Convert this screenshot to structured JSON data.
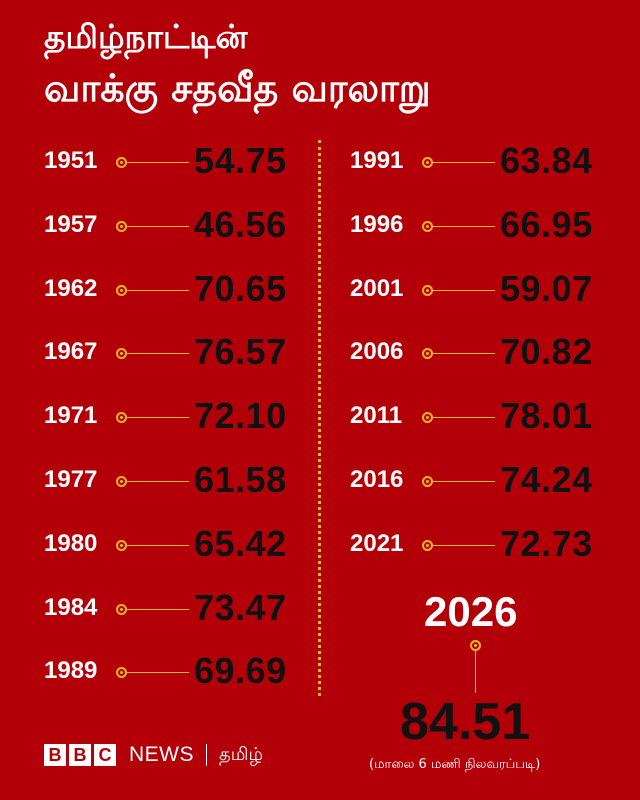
{
  "title": {
    "line1": "தமிழ்நாட்டின்",
    "line2": "வாக்கு சதவீத வரலாறு"
  },
  "colors": {
    "background": "#b30008",
    "accent": "#f7b51e",
    "value_text": "#111111"
  },
  "left_column": [
    {
      "year": "1951",
      "value": "54.75"
    },
    {
      "year": "1957",
      "value": "46.56"
    },
    {
      "year": "1962",
      "value": "70.65"
    },
    {
      "year": "1967",
      "value": "76.57"
    },
    {
      "year": "1971",
      "value": "72.10"
    },
    {
      "year": "1977",
      "value": "61.58"
    },
    {
      "year": "1980",
      "value": "65.42"
    },
    {
      "year": "1984",
      "value": "73.47"
    },
    {
      "year": "1989",
      "value": "69.69"
    }
  ],
  "right_column": [
    {
      "year": "1991",
      "value": "63.84"
    },
    {
      "year": "1996",
      "value": "66.95"
    },
    {
      "year": "2001",
      "value": "59.07"
    },
    {
      "year": "2006",
      "value": "70.82"
    },
    {
      "year": "2011",
      "value": "78.01"
    },
    {
      "year": "2016",
      "value": "74.24"
    },
    {
      "year": "2021",
      "value": "72.73"
    }
  ],
  "latest": {
    "year": "2026",
    "value": "84.51",
    "note": "(மாலை 6 மணி நிலவரப்படி)"
  },
  "footer": {
    "logo_letters": [
      "B",
      "B",
      "C"
    ],
    "news": "NEWS",
    "language": "தமிழ்"
  }
}
